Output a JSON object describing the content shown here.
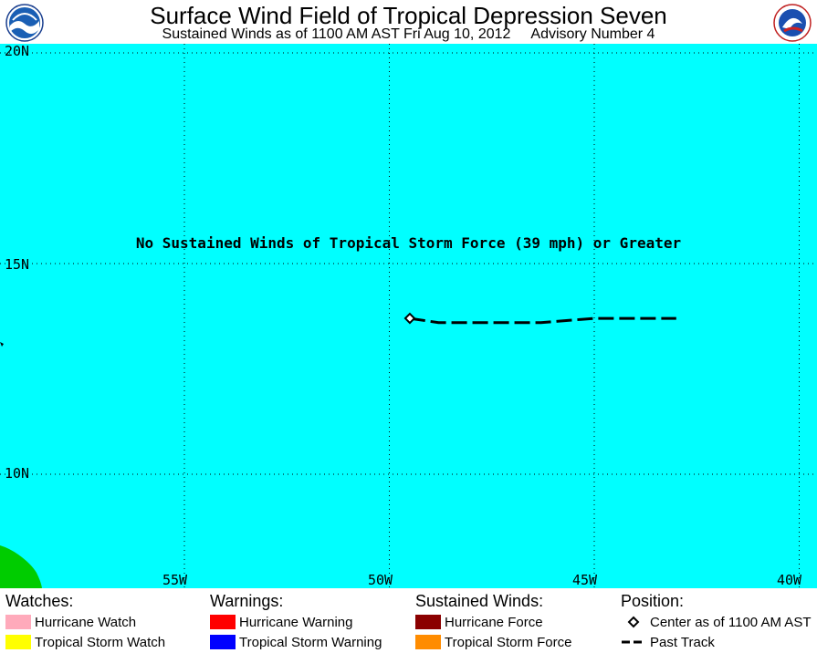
{
  "header": {
    "title": "Surface Wind Field of Tropical Depression Seven",
    "subtitle": "Sustained Winds as of 1100 AM AST Fri Aug 10, 2012",
    "advisory": "Advisory Number 4"
  },
  "logos": {
    "left": "noaa-logo-icon",
    "right": "nws-logo-icon"
  },
  "map": {
    "background_color": "#00ffff",
    "land_color": "#00cc00",
    "note": "No Sustained Winds of Tropical Storm Force (39 mph) or Greater",
    "lat_labels": [
      "20N",
      "15N",
      "10N"
    ],
    "lon_labels": [
      "55W",
      "50W",
      "45W",
      "40W"
    ],
    "grid": "dotted",
    "center": {
      "lat": 13.7,
      "lon": 49.5
    },
    "past_track": [
      {
        "lat": 13.7,
        "lon": 49.5
      },
      {
        "lat": 13.6,
        "lon": 48.8
      },
      {
        "lat": 13.6,
        "lon": 47.5
      },
      {
        "lat": 13.6,
        "lon": 46.3
      },
      {
        "lat": 13.7,
        "lon": 45.0
      },
      {
        "lat": 13.7,
        "lon": 43.0
      }
    ]
  },
  "legend": {
    "watches": {
      "title": "Watches:",
      "items": [
        {
          "label": "Hurricane Watch",
          "color": "#ffaabb"
        },
        {
          "label": "Tropical Storm Watch",
          "color": "#ffff00"
        }
      ]
    },
    "warnings": {
      "title": "Warnings:",
      "items": [
        {
          "label": "Hurricane Warning",
          "color": "#ff0000"
        },
        {
          "label": "Tropical Storm Warning",
          "color": "#0000ff"
        }
      ]
    },
    "winds": {
      "title": "Sustained Winds:",
      "items": [
        {
          "label": "Hurricane Force",
          "color": "#8b0000"
        },
        {
          "label": "Tropical Storm Force",
          "color": "#ff8c00"
        }
      ]
    },
    "position": {
      "title": "Position:",
      "center_label": "Center as of 1100 AM AST",
      "track_label": "Past Track"
    }
  }
}
